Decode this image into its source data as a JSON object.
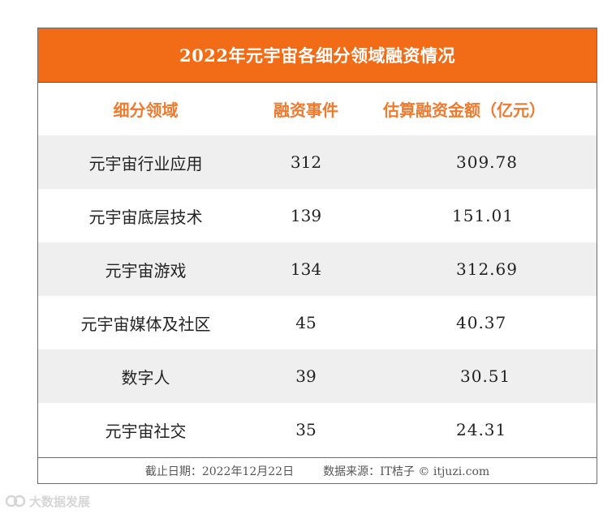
{
  "title": "2022年元宇宙各细分领域融资情况",
  "columns": [
    "细分领域",
    "融资事件",
    "估算融资金额（亿元）"
  ],
  "rows": [
    {
      "segment": "元宇宙行业应用",
      "events": "312",
      "amount": "309.78"
    },
    {
      "segment": "元宇宙底层技术",
      "events": "139",
      "amount": "151.01"
    },
    {
      "segment": "元宇宙游戏",
      "events": "134",
      "amount": "312.69"
    },
    {
      "segment": "元宇宙媒体及社区",
      "events": "45",
      "amount": "40.37"
    },
    {
      "segment": "数字人",
      "events": "39",
      "amount": "30.51"
    },
    {
      "segment": "元宇宙社交",
      "events": "35",
      "amount": "24.31"
    }
  ],
  "footer": {
    "date_note": "截止日期：2022年12月22日",
    "source_note": "数据来源：IT桔子 © itjuzi.com"
  },
  "watermark": {
    "text": "大数据发展"
  },
  "colors": {
    "title_background": "#f26b16",
    "header_text": "#ef7a2e",
    "row_shading": "#efefef"
  }
}
